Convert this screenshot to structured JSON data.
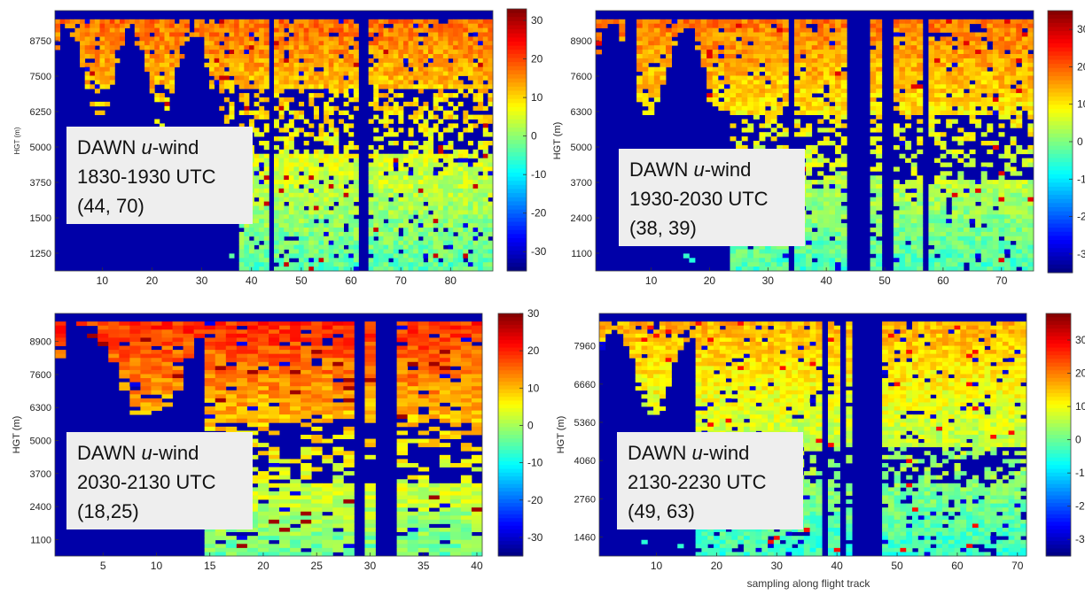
{
  "figure": {
    "shared_xlabel": "sampling along flight track"
  },
  "chart_data": [
    {
      "type": "heatmap",
      "ylabel": "HGT (m)",
      "xticks": [
        10,
        20,
        30,
        40,
        50,
        60,
        70,
        80
      ],
      "xlim": [
        0.5,
        88.5
      ],
      "yticks": [
        1250,
        1500,
        3750,
        5000,
        6250,
        7500,
        8750
      ],
      "colorbar_ticks": [
        30,
        20,
        10,
        0,
        -10,
        -20,
        -30
      ],
      "colorbar_range": [
        -35,
        33
      ],
      "annotation": [
        "DAWN ",
        "u",
        "-wind",
        "1830-1930 UTC",
        "(44, 70)"
      ],
      "dropout_columns": [
        44,
        62,
        63
      ],
      "pattern": {
        "blocked_left_until": 38,
        "gap_band": [
          0.45,
          0.7
        ],
        "peak_u": 14
      }
    },
    {
      "type": "heatmap",
      "ylabel": "HGT (m)",
      "xticks": [
        10,
        20,
        30,
        40,
        50,
        60,
        70
      ],
      "xlim": [
        0.5,
        75.5
      ],
      "yticks": [
        1100,
        2400,
        3700,
        5000,
        6300,
        7600,
        8900
      ],
      "colorbar_ticks": [
        30,
        20,
        10,
        0,
        -10,
        -20,
        -30
      ],
      "colorbar_range": [
        -35,
        35
      ],
      "annotation": [
        "DAWN ",
        "u",
        "-wind",
        "1930-2030 UTC",
        "(38, 39)"
      ],
      "dropout_columns": [
        6,
        7,
        34,
        44,
        45,
        46,
        47,
        50,
        51,
        57
      ],
      "pattern": {
        "blocked_left_until": 24,
        "gap_band": [
          0.35,
          0.6
        ],
        "peak_u": 15
      }
    },
    {
      "type": "heatmap",
      "ylabel": "HGT (m)",
      "xticks": [
        5,
        10,
        15,
        20,
        25,
        30,
        35,
        40
      ],
      "xlim": [
        0.5,
        40.5
      ],
      "yticks": [
        1100,
        2400,
        3700,
        5000,
        6300,
        7600,
        8900
      ],
      "colorbar_ticks": [
        30,
        20,
        10,
        0,
        -10,
        -20,
        -30
      ],
      "colorbar_range": [
        -35,
        30
      ],
      "annotation": [
        "DAWN ",
        "u",
        "-wind",
        "2030-2130 UTC",
        "(18,25)"
      ],
      "dropout_columns": [
        2,
        29,
        31,
        32
      ],
      "pattern": {
        "blocked_left_until": 15,
        "gap_band": [
          0.3,
          0.55
        ],
        "peak_u": 16
      }
    },
    {
      "type": "heatmap",
      "ylabel": "HGT (m)",
      "xlabel": "sampling along flight track",
      "xticks": [
        10,
        20,
        30,
        40,
        50,
        60,
        70
      ],
      "xlim": [
        0.5,
        71.5
      ],
      "yticks": [
        1460,
        2760,
        4060,
        5360,
        6660,
        7960
      ],
      "colorbar_ticks": [
        30,
        20,
        10,
        0,
        -10,
        -20,
        -30
      ],
      "colorbar_range": [
        -35,
        38
      ],
      "annotation": [
        "DAWN ",
        "u",
        "-wind",
        "2130-2230 UTC",
        "(49, 63)"
      ],
      "dropout_columns": [
        38,
        41,
        43,
        44,
        45,
        46,
        47
      ],
      "pattern": {
        "blocked_left_until": 17,
        "gap_band": [
          0.3,
          0.45
        ],
        "peak_u": 13
      }
    }
  ]
}
